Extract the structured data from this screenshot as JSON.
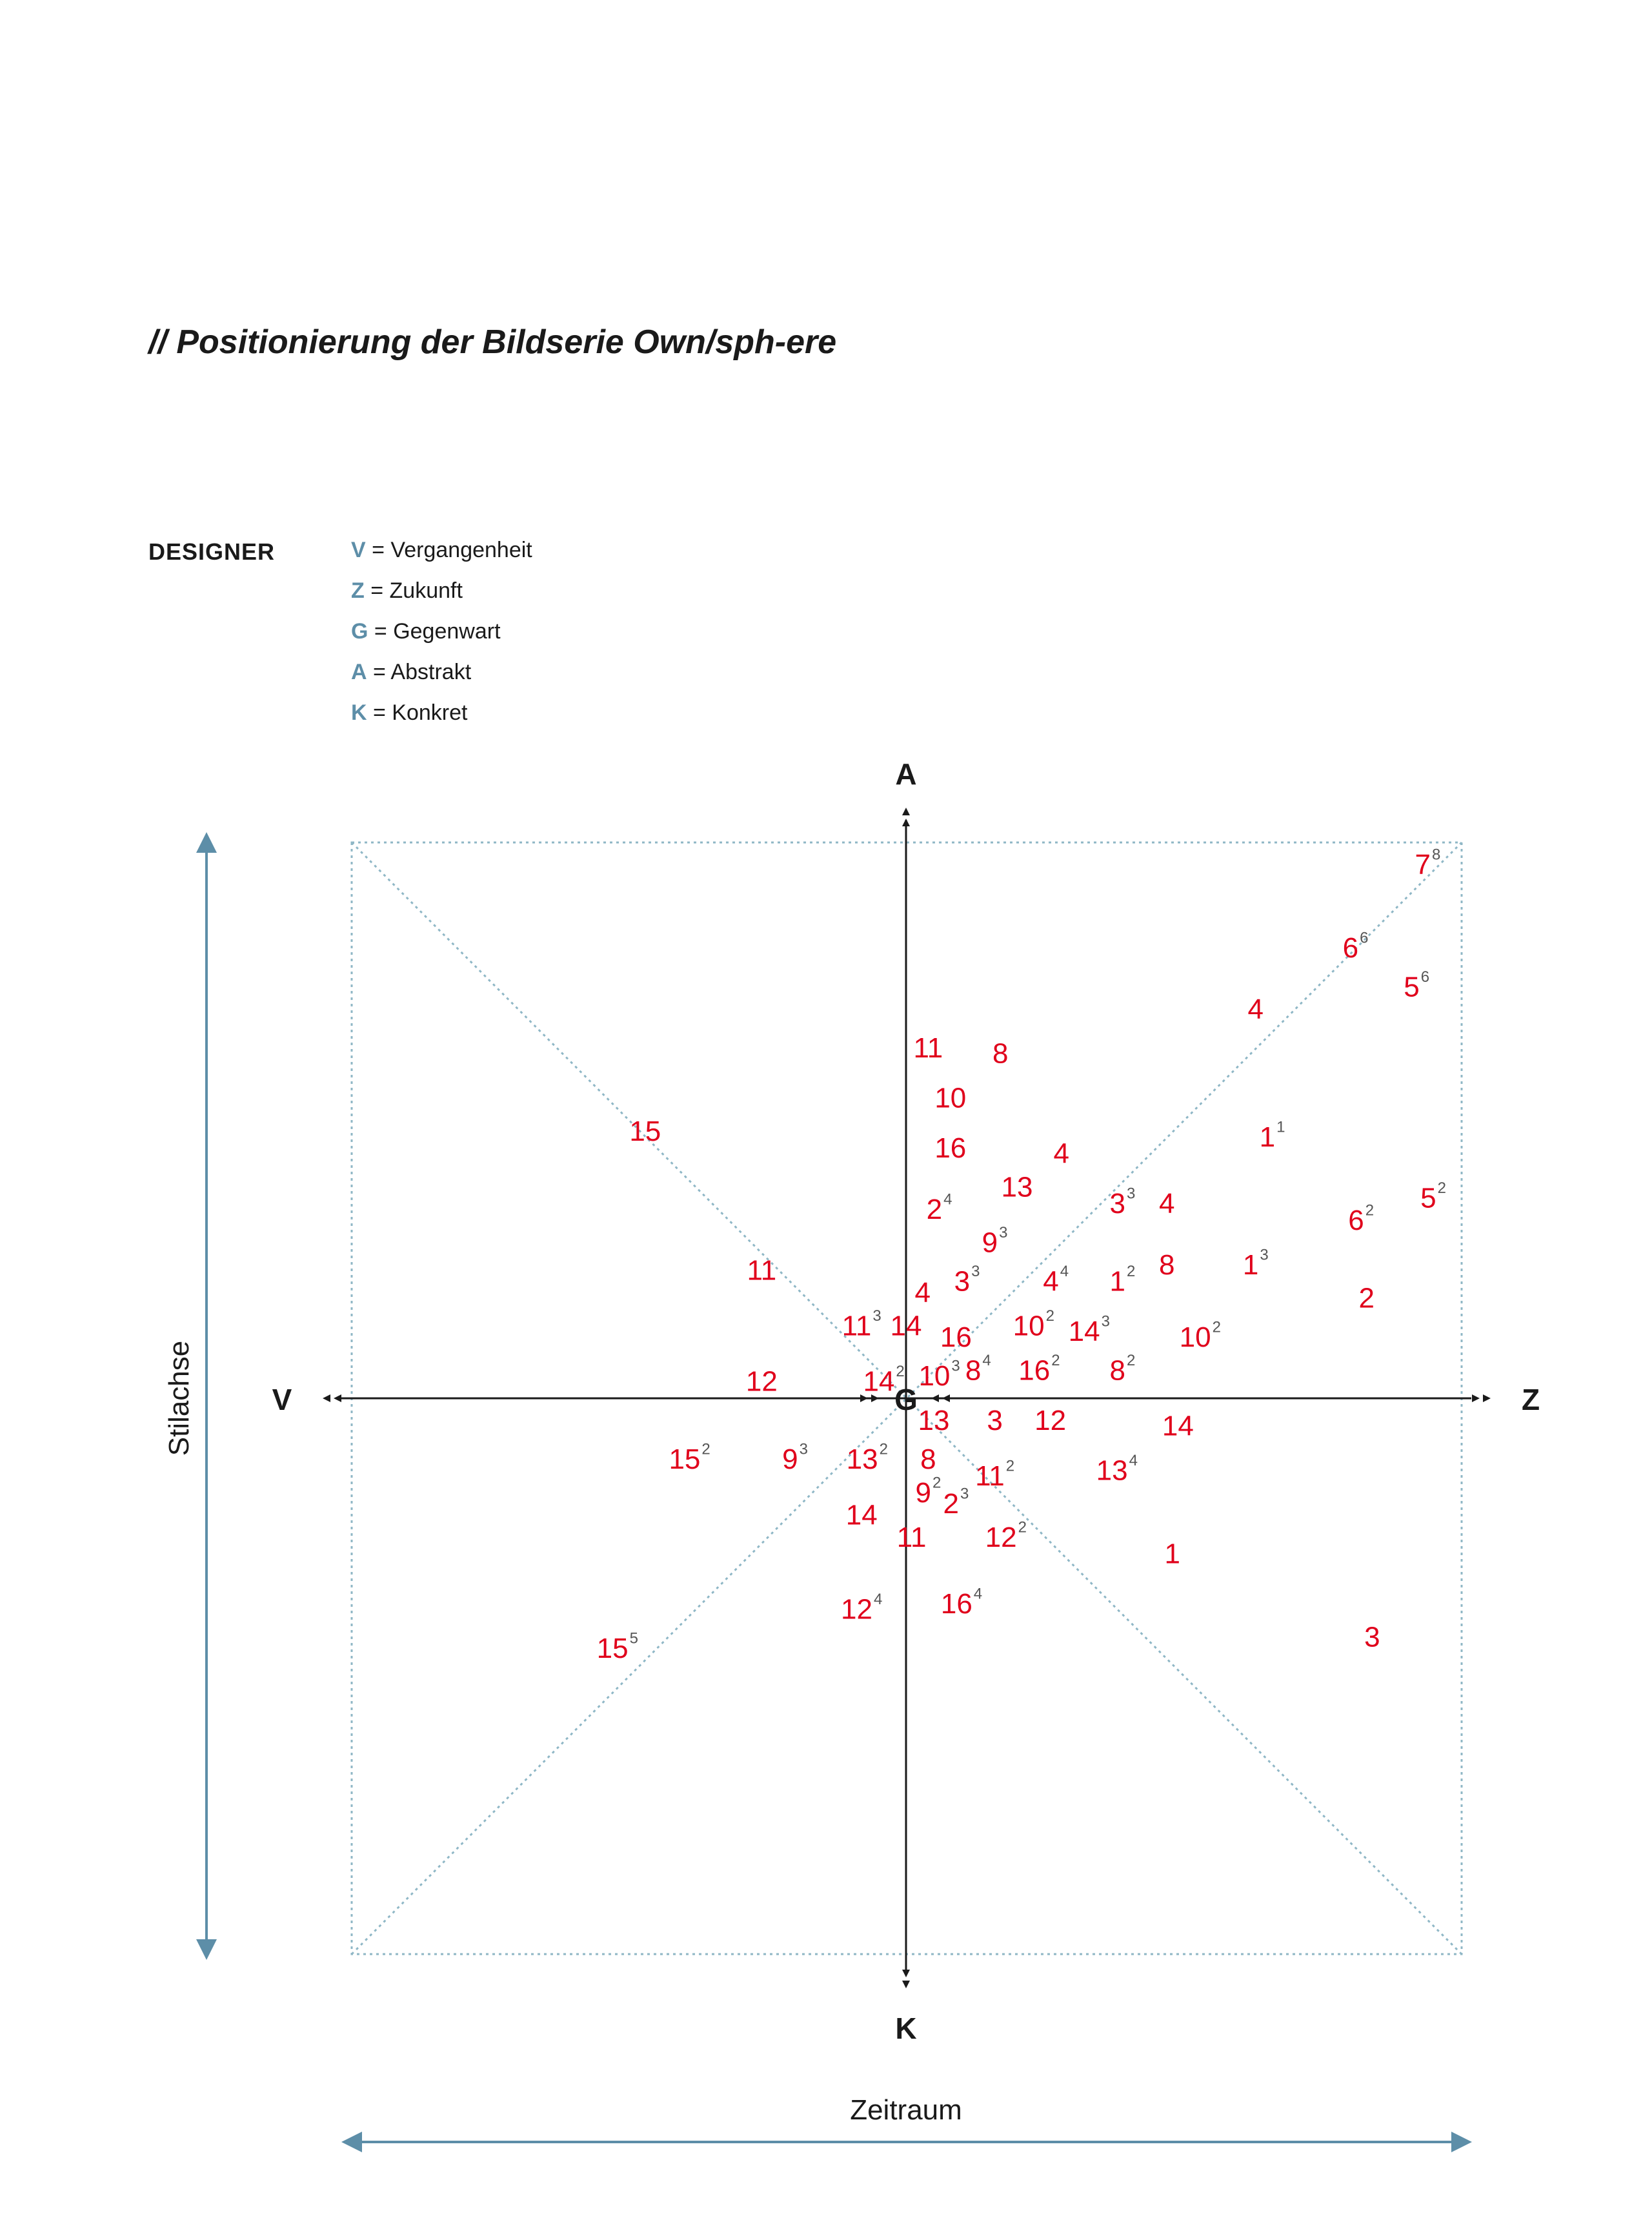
{
  "title": "// Positionierung der Bildserie Own/sph-ere",
  "legend": {
    "heading": "DESIGNER",
    "items": [
      {
        "key": "V",
        "text": " = Vergangenheit"
      },
      {
        "key": "Z",
        "text": " = Zukunft"
      },
      {
        "key": "G",
        "text": " = Gegenwart"
      },
      {
        "key": "A",
        "text": " = Abstrakt"
      },
      {
        "key": "K",
        "text": " = Konkret"
      }
    ]
  },
  "colors": {
    "points": "#e0001b",
    "axis": "#1a1a1a",
    "range": "#5d8ea8",
    "guide": "#8fb7c6"
  },
  "chart_data": {
    "type": "scatter",
    "xlabel": "Zeitraum",
    "ylabel": "Stilachse",
    "x_ends": {
      "left": "V",
      "right": "Z"
    },
    "y_ends": {
      "top": "A",
      "bottom": "K"
    },
    "origin_label": "G",
    "xlim": [
      -1,
      1
    ],
    "ylim": [
      -1,
      1
    ],
    "points": [
      {
        "label": "7",
        "sup": "8",
        "x": 0.94,
        "y": 0.96
      },
      {
        "label": "6",
        "sup": "6",
        "x": 0.81,
        "y": 0.81
      },
      {
        "label": "5",
        "sup": "6",
        "x": 0.92,
        "y": 0.74
      },
      {
        "label": "4",
        "sup": "",
        "x": 0.63,
        "y": 0.7
      },
      {
        "label": "11",
        "sup": "",
        "x": 0.04,
        "y": 0.63
      },
      {
        "label": "8",
        "sup": "",
        "x": 0.17,
        "y": 0.62
      },
      {
        "label": "10",
        "sup": "",
        "x": 0.08,
        "y": 0.54
      },
      {
        "label": "15",
        "sup": "",
        "x": -0.47,
        "y": 0.48
      },
      {
        "label": "16",
        "sup": "",
        "x": 0.08,
        "y": 0.45
      },
      {
        "label": "4",
        "sup": "",
        "x": 0.28,
        "y": 0.44
      },
      {
        "label": "1",
        "sup": "1",
        "x": 0.66,
        "y": 0.47
      },
      {
        "label": "13",
        "sup": "",
        "x": 0.2,
        "y": 0.38
      },
      {
        "label": "2",
        "sup": "4",
        "x": 0.06,
        "y": 0.34
      },
      {
        "label": "3",
        "sup": "3",
        "x": 0.39,
        "y": 0.35
      },
      {
        "label": "4",
        "sup": "",
        "x": 0.47,
        "y": 0.35
      },
      {
        "label": "5",
        "sup": "2",
        "x": 0.95,
        "y": 0.36
      },
      {
        "label": "6",
        "sup": "2",
        "x": 0.82,
        "y": 0.32
      },
      {
        "label": "9",
        "sup": "3",
        "x": 0.16,
        "y": 0.28
      },
      {
        "label": "11",
        "sup": "",
        "x": -0.26,
        "y": 0.23
      },
      {
        "label": "4",
        "sup": "",
        "x": 0.03,
        "y": 0.19
      },
      {
        "label": "3",
        "sup": "3",
        "x": 0.11,
        "y": 0.21
      },
      {
        "label": "4",
        "sup": "4",
        "x": 0.27,
        "y": 0.21
      },
      {
        "label": "1",
        "sup": "2",
        "x": 0.39,
        "y": 0.21
      },
      {
        "label": "8",
        "sup": "",
        "x": 0.47,
        "y": 0.24
      },
      {
        "label": "1",
        "sup": "3",
        "x": 0.63,
        "y": 0.24
      },
      {
        "label": "2",
        "sup": "",
        "x": 0.83,
        "y": 0.18
      },
      {
        "label": "11",
        "sup": "3",
        "x": -0.08,
        "y": 0.13
      },
      {
        "label": "14",
        "sup": "",
        "x": 0.0,
        "y": 0.13
      },
      {
        "label": "16",
        "sup": "",
        "x": 0.09,
        "y": 0.11
      },
      {
        "label": "10",
        "sup": "2",
        "x": 0.23,
        "y": 0.13
      },
      {
        "label": "14",
        "sup": "3",
        "x": 0.33,
        "y": 0.12
      },
      {
        "label": "10",
        "sup": "2",
        "x": 0.53,
        "y": 0.11
      },
      {
        "label": "12",
        "sup": "",
        "x": -0.26,
        "y": 0.03
      },
      {
        "label": "14",
        "sup": "2",
        "x": -0.04,
        "y": 0.03
      },
      {
        "label": "10",
        "sup": "3",
        "x": 0.06,
        "y": 0.04
      },
      {
        "label": "8",
        "sup": "4",
        "x": 0.13,
        "y": 0.05
      },
      {
        "label": "16",
        "sup": "2",
        "x": 0.24,
        "y": 0.05
      },
      {
        "label": "8",
        "sup": "2",
        "x": 0.39,
        "y": 0.05
      },
      {
        "label": "13",
        "sup": "",
        "x": 0.05,
        "y": -0.04
      },
      {
        "label": "3",
        "sup": "",
        "x": 0.16,
        "y": -0.04
      },
      {
        "label": "12",
        "sup": "",
        "x": 0.26,
        "y": -0.04
      },
      {
        "label": "14",
        "sup": "",
        "x": 0.49,
        "y": -0.05
      },
      {
        "label": "15",
        "sup": "2",
        "x": -0.39,
        "y": -0.11
      },
      {
        "label": "9",
        "sup": "3",
        "x": -0.2,
        "y": -0.11
      },
      {
        "label": "13",
        "sup": "2",
        "x": -0.07,
        "y": -0.11
      },
      {
        "label": "8",
        "sup": "",
        "x": 0.04,
        "y": -0.11
      },
      {
        "label": "11",
        "sup": "2",
        "x": 0.16,
        "y": -0.14
      },
      {
        "label": "13",
        "sup": "4",
        "x": 0.38,
        "y": -0.13
      },
      {
        "label": "9",
        "sup": "2",
        "x": 0.04,
        "y": -0.17
      },
      {
        "label": "2",
        "sup": "3",
        "x": 0.09,
        "y": -0.19
      },
      {
        "label": "14",
        "sup": "",
        "x": -0.08,
        "y": -0.21
      },
      {
        "label": "11",
        "sup": "",
        "x": 0.01,
        "y": -0.25
      },
      {
        "label": "12",
        "sup": "2",
        "x": 0.18,
        "y": -0.25
      },
      {
        "label": "1",
        "sup": "",
        "x": 0.48,
        "y": -0.28
      },
      {
        "label": "12",
        "sup": "4",
        "x": -0.08,
        "y": -0.38
      },
      {
        "label": "16",
        "sup": "4",
        "x": 0.1,
        "y": -0.37
      },
      {
        "label": "15",
        "sup": "5",
        "x": -0.52,
        "y": -0.45
      },
      {
        "label": "3",
        "sup": "",
        "x": 0.84,
        "y": -0.43
      }
    ]
  }
}
